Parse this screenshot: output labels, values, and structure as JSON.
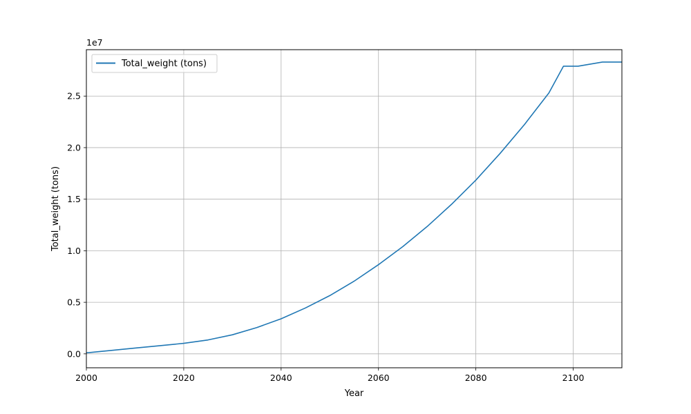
{
  "chart_data": {
    "type": "line",
    "title": "",
    "xlabel": "Year",
    "ylabel": "Total_weight (tons)",
    "offset_label": "1e7",
    "xlim": [
      2000,
      2110
    ],
    "ylim": [
      -1350000,
      29500000
    ],
    "grid": true,
    "legend_position": "top-left",
    "x_ticks": [
      {
        "value": 2000,
        "label": "2000"
      },
      {
        "value": 2020,
        "label": "2020"
      },
      {
        "value": 2040,
        "label": "2040"
      },
      {
        "value": 2060,
        "label": "2060"
      },
      {
        "value": 2080,
        "label": "2080"
      },
      {
        "value": 2100,
        "label": "2100"
      }
    ],
    "y_ticks": [
      {
        "value": 0,
        "label": "0.0"
      },
      {
        "value": 5000000,
        "label": "0.5"
      },
      {
        "value": 10000000,
        "label": "1.0"
      },
      {
        "value": 15000000,
        "label": "1.5"
      },
      {
        "value": 20000000,
        "label": "2.0"
      },
      {
        "value": 25000000,
        "label": "2.5"
      }
    ],
    "series": [
      {
        "name": "Total_weight (tons)",
        "color": "#1f77b4",
        "x": [
          2000,
          2005,
          2010,
          2015,
          2020,
          2025,
          2030,
          2035,
          2040,
          2045,
          2050,
          2055,
          2060,
          2065,
          2070,
          2075,
          2080,
          2085,
          2090,
          2095,
          2098,
          2101,
          2106,
          2110
        ],
        "values": [
          100000,
          330000,
          560000,
          790000,
          1020000,
          1350000,
          1850000,
          2550000,
          3400000,
          4450000,
          5650000,
          7050000,
          8650000,
          10400000,
          12350000,
          14500000,
          16850000,
          19450000,
          22250000,
          25300000,
          27900000,
          27900000,
          28300000,
          28300000
        ]
      }
    ]
  }
}
